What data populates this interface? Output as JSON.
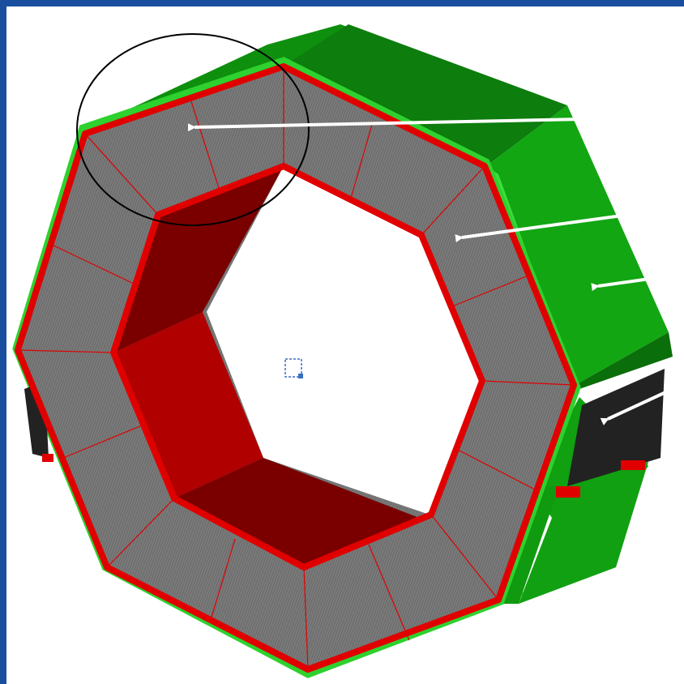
{
  "slide": {
    "background_color": "#ffffff",
    "frame_color": "#1a4fa0"
  },
  "diagram": {
    "colors": {
      "module_green_dark": "#0d8a0d",
      "module_green": "#12a612",
      "module_green_light": "#2ed12e",
      "edge_green": "#3be03b",
      "red_frame": "#e00000",
      "inner_red_dark": "#7a0000",
      "inner_red": "#b00000",
      "grey_sector": "#767676",
      "grey_hatch": "#5a5a5a",
      "black_block": "#222222",
      "arrow": "#ffffff",
      "highlight_circle": "#000000"
    },
    "arrow_count": 4,
    "highlight_circle": true,
    "small_marker_icon": "dashed-selection-box-icon"
  }
}
